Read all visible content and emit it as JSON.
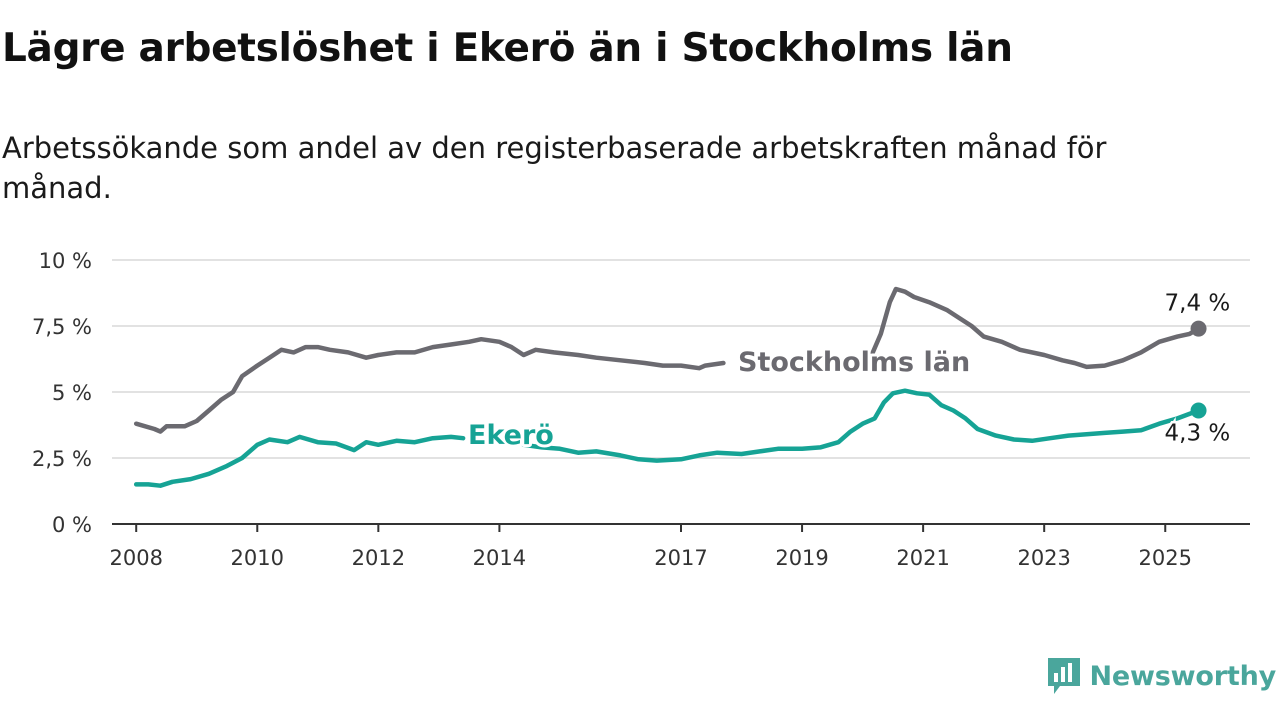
{
  "header": {
    "title": "Lägre arbetslöshet i Ekerö än i Stockholms län",
    "subtitle": "Arbetssökande som andel av den registerbaserade arbetskraften månad för månad."
  },
  "brand": {
    "name": "Newsworthy",
    "icon": "newsworthy-logo-icon",
    "color": "#4aa69c"
  },
  "chart_data": {
    "type": "line",
    "title": "Lägre arbetslöshet i Ekerö än i Stockholms län",
    "subtitle": "Arbetssökande som andel av den registerbaserade arbetskraften månad för månad.",
    "xlabel": "",
    "ylabel": "",
    "xlim": [
      2007.6,
      2026.4
    ],
    "ylim": [
      0,
      10
    ],
    "y_ticks": [
      0,
      2.5,
      5,
      7.5,
      10
    ],
    "y_tick_labels": [
      "0 %",
      "2,5 %",
      "5 %",
      "7,5 %",
      "10 %"
    ],
    "x_ticks": [
      2008,
      2010,
      2012,
      2014,
      2017,
      2019,
      2021,
      2023,
      2025
    ],
    "x_tick_labels": [
      "2008",
      "2010",
      "2012",
      "2014",
      "2017",
      "2019",
      "2021",
      "2023",
      "2025"
    ],
    "grid": "horizontal",
    "legend": "direct labels on lines",
    "series": [
      {
        "name": "Stockholms län",
        "color": "#6b6a70",
        "end_label": "7,4 %",
        "points": [
          [
            2008.0,
            3.8
          ],
          [
            2008.3,
            3.6
          ],
          [
            2008.4,
            3.5
          ],
          [
            2008.5,
            3.7
          ],
          [
            2008.8,
            3.7
          ],
          [
            2009.0,
            3.9
          ],
          [
            2009.2,
            4.3
          ],
          [
            2009.4,
            4.7
          ],
          [
            2009.6,
            5.0
          ],
          [
            2009.75,
            5.6
          ],
          [
            2010.0,
            6.0
          ],
          [
            2010.2,
            6.3
          ],
          [
            2010.4,
            6.6
          ],
          [
            2010.6,
            6.5
          ],
          [
            2010.8,
            6.7
          ],
          [
            2011.0,
            6.7
          ],
          [
            2011.2,
            6.6
          ],
          [
            2011.5,
            6.5
          ],
          [
            2011.8,
            6.3
          ],
          [
            2012.0,
            6.4
          ],
          [
            2012.3,
            6.5
          ],
          [
            2012.6,
            6.5
          ],
          [
            2012.9,
            6.7
          ],
          [
            2013.2,
            6.8
          ],
          [
            2013.5,
            6.9
          ],
          [
            2013.7,
            7.0
          ],
          [
            2014.0,
            6.9
          ],
          [
            2014.2,
            6.7
          ],
          [
            2014.4,
            6.4
          ],
          [
            2014.6,
            6.6
          ],
          [
            2014.9,
            6.5
          ],
          [
            2015.3,
            6.4
          ],
          [
            2015.6,
            6.3
          ],
          [
            2016.0,
            6.2
          ],
          [
            2016.4,
            6.1
          ],
          [
            2016.7,
            6.0
          ],
          [
            2017.0,
            6.0
          ],
          [
            2017.3,
            5.9
          ],
          [
            2017.4,
            6.0
          ],
          [
            2017.7,
            6.1
          ]
        ],
        "points_after_label": [
          [
            2020.15,
            6.4
          ],
          [
            2020.3,
            7.2
          ],
          [
            2020.45,
            8.4
          ],
          [
            2020.55,
            8.9
          ],
          [
            2020.7,
            8.8
          ],
          [
            2020.85,
            8.6
          ],
          [
            2021.1,
            8.4
          ],
          [
            2021.4,
            8.1
          ],
          [
            2021.6,
            7.8
          ],
          [
            2021.8,
            7.5
          ],
          [
            2022.0,
            7.1
          ],
          [
            2022.3,
            6.9
          ],
          [
            2022.6,
            6.6
          ],
          [
            2023.0,
            6.4
          ],
          [
            2023.3,
            6.2
          ],
          [
            2023.5,
            6.1
          ],
          [
            2023.7,
            5.95
          ],
          [
            2024.0,
            6.0
          ],
          [
            2024.3,
            6.2
          ],
          [
            2024.6,
            6.5
          ],
          [
            2024.9,
            6.9
          ],
          [
            2025.2,
            7.1
          ],
          [
            2025.4,
            7.2
          ],
          [
            2025.55,
            7.4
          ]
        ]
      },
      {
        "name": "Ekerö",
        "color": "#16a395",
        "end_label": "4,3 %",
        "points": [
          [
            2008.0,
            1.5
          ],
          [
            2008.2,
            1.5
          ],
          [
            2008.4,
            1.45
          ],
          [
            2008.6,
            1.6
          ],
          [
            2008.9,
            1.7
          ],
          [
            2009.2,
            1.9
          ],
          [
            2009.5,
            2.2
          ],
          [
            2009.75,
            2.5
          ],
          [
            2010.0,
            3.0
          ],
          [
            2010.2,
            3.2
          ],
          [
            2010.5,
            3.1
          ],
          [
            2010.7,
            3.3
          ],
          [
            2011.0,
            3.1
          ],
          [
            2011.3,
            3.05
          ],
          [
            2011.6,
            2.8
          ],
          [
            2011.8,
            3.1
          ],
          [
            2012.0,
            3.0
          ],
          [
            2012.3,
            3.15
          ],
          [
            2012.6,
            3.1
          ],
          [
            2012.9,
            3.25
          ],
          [
            2013.2,
            3.3
          ],
          [
            2013.4,
            3.25
          ]
        ],
        "points_after_label": [
          [
            2014.4,
            3.0
          ],
          [
            2014.7,
            2.9
          ],
          [
            2015.0,
            2.85
          ],
          [
            2015.3,
            2.7
          ],
          [
            2015.6,
            2.75
          ],
          [
            2016.0,
            2.6
          ],
          [
            2016.3,
            2.45
          ],
          [
            2016.6,
            2.4
          ],
          [
            2017.0,
            2.45
          ],
          [
            2017.3,
            2.6
          ],
          [
            2017.6,
            2.7
          ],
          [
            2018.0,
            2.65
          ],
          [
            2018.3,
            2.75
          ],
          [
            2018.6,
            2.85
          ],
          [
            2019.0,
            2.85
          ],
          [
            2019.3,
            2.9
          ],
          [
            2019.6,
            3.1
          ],
          [
            2019.8,
            3.5
          ],
          [
            2020.0,
            3.8
          ],
          [
            2020.2,
            4.0
          ],
          [
            2020.35,
            4.6
          ],
          [
            2020.5,
            4.95
          ],
          [
            2020.7,
            5.05
          ],
          [
            2020.9,
            4.95
          ],
          [
            2021.1,
            4.9
          ],
          [
            2021.3,
            4.5
          ],
          [
            2021.5,
            4.3
          ],
          [
            2021.7,
            4.0
          ],
          [
            2021.9,
            3.6
          ],
          [
            2022.2,
            3.35
          ],
          [
            2022.5,
            3.2
          ],
          [
            2022.8,
            3.15
          ],
          [
            2023.1,
            3.25
          ],
          [
            2023.4,
            3.35
          ],
          [
            2023.7,
            3.4
          ],
          [
            2024.0,
            3.45
          ],
          [
            2024.3,
            3.5
          ],
          [
            2024.6,
            3.55
          ],
          [
            2024.9,
            3.8
          ],
          [
            2025.2,
            4.0
          ],
          [
            2025.55,
            4.3
          ]
        ]
      }
    ]
  }
}
